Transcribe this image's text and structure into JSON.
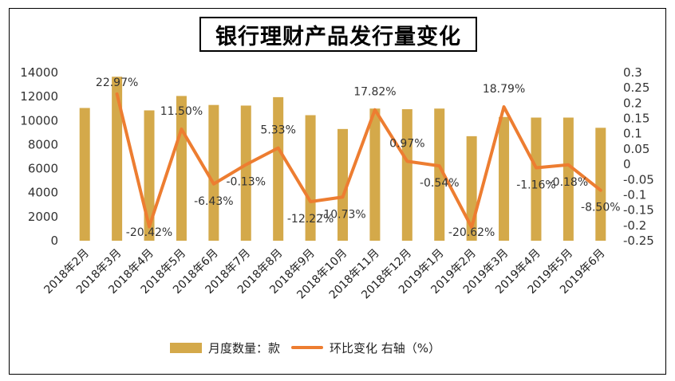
{
  "chart_data": {
    "type": "bar+line",
    "title": "银行理财产品发行量变化",
    "categories": [
      "2018年2月",
      "2018年3月",
      "2018年4月",
      "2018年5月",
      "2018年6月",
      "2018年7月",
      "2018年8月",
      "2018年9月",
      "2018年10月",
      "2018年11月",
      "2018年12月",
      "2019年1月",
      "2019年2月",
      "2019年3月",
      "2019年4月",
      "2019年5月",
      "2019年6月"
    ],
    "series": [
      {
        "name": "月度数量：款",
        "type": "bar",
        "axis": "left",
        "color": "#D4A94A",
        "values": [
          11050,
          13650,
          10850,
          12050,
          11300,
          11250,
          11950,
          10450,
          9300,
          11000,
          10950,
          11000,
          8700,
          10300,
          10250,
          10250,
          9400
        ]
      },
      {
        "name": "环比变化 右轴（%）",
        "type": "line",
        "axis": "right",
        "color": "#ED7D31",
        "values": [
          null,
          0.2297,
          -0.2042,
          0.115,
          -0.0643,
          -0.0013,
          0.0533,
          -0.1222,
          -0.1073,
          0.1782,
          0.0097,
          -0.0054,
          -0.2062,
          0.1879,
          -0.0116,
          -0.0018,
          -0.085
        ]
      }
    ],
    "data_labels": [
      "",
      "22.97%",
      "-20.42%",
      "11.50%",
      "-6.43%",
      "-0.13%",
      "5.33%",
      "-12.22%",
      "-10.73%",
      "17.82%",
      "0.97%",
      "-0.54%",
      "-20.62%",
      "18.79%",
      "-1.16%",
      "-0.18%",
      "-8.50%"
    ],
    "y_left": {
      "ylim": [
        0,
        14000
      ],
      "ticks": [
        "0",
        "2000",
        "4000",
        "6000",
        "8000",
        "10000",
        "12000",
        "14000"
      ]
    },
    "y_right": {
      "ylim": [
        -0.25,
        0.3
      ],
      "ticks": [
        "-0.25",
        "-0.2",
        "-0.15",
        "-0.1",
        "-0.05",
        "0",
        "0.05",
        "0.1",
        "0.15",
        "0.2",
        "0.25",
        "0.3"
      ]
    },
    "legend_position": "bottom",
    "grid": false
  }
}
